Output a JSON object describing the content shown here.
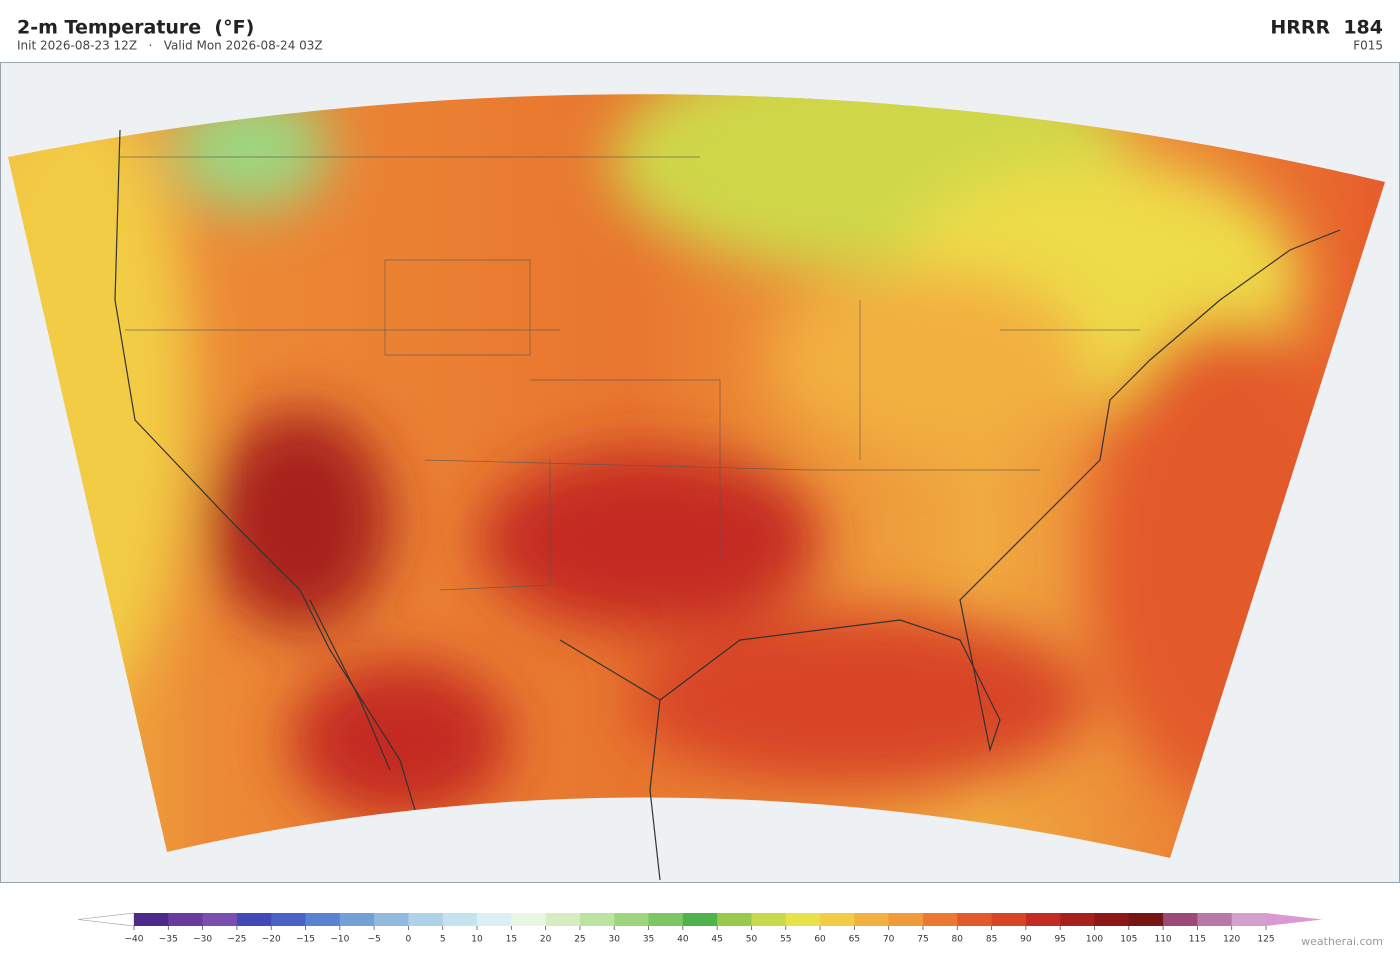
{
  "header": {
    "title": "2-m Temperature  (°F)",
    "subtitle": "Init 2026-08-23 12Z   ·   Valid Mon 2026-08-24 03Z",
    "model": "HRRR  184",
    "forecast": "F015"
  },
  "colorbar": {
    "labels": [
      "−40",
      "−35",
      "−30",
      "−25",
      "−20",
      "−15",
      "−10",
      "−5",
      "0",
      "5",
      "10",
      "15",
      "20",
      "25",
      "30",
      "35",
      "40",
      "45",
      "50",
      "55",
      "60",
      "65",
      "70",
      "75",
      "80",
      "85",
      "90",
      "95",
      "100",
      "105",
      "110",
      "115",
      "120",
      "125"
    ],
    "colors": [
      "#4b2a8c",
      "#6a3a9e",
      "#7a4fb0",
      "#4347b8",
      "#4b63c8",
      "#5b82d0",
      "#74a0d8",
      "#92badf",
      "#aed2e8",
      "#c5e3ef",
      "#dcf0f3",
      "#e8f6e4",
      "#d6edc4",
      "#bde3a0",
      "#9ed680",
      "#7cc663",
      "#4fb24a",
      "#98c94a",
      "#c6d94a",
      "#e8e24a",
      "#f2cc45",
      "#f2b040",
      "#f09a3a",
      "#ea7a32",
      "#e35a2a",
      "#d84426",
      "#c42c22",
      "#a8201c",
      "#8c1818",
      "#771414",
      "#9c4a78",
      "#b878a8",
      "#d4a0cc"
    ],
    "under_color": "#ffffff",
    "over_color": "#d89ad0"
  },
  "footer": {
    "credit": "weatherai.com"
  }
}
